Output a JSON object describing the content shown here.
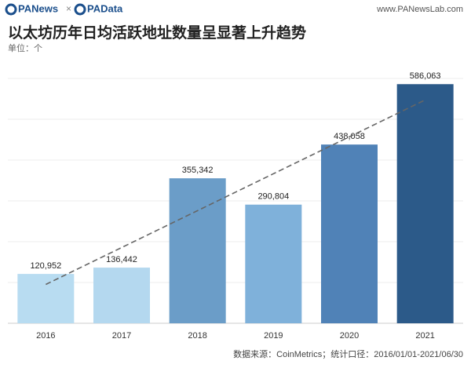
{
  "header": {
    "brand1": "PANews",
    "separator": "×",
    "brand2": "PAData",
    "url": "www.PANewsLab.com"
  },
  "chart_data": {
    "type": "bar",
    "title": "以太坊历年日均活跃地址数量呈显著上升趋势",
    "subtitle": "单位：个",
    "categories": [
      "2016",
      "2017",
      "2018",
      "2019",
      "2020",
      "2021"
    ],
    "values": [
      120952,
      136442,
      355342,
      290804,
      438058,
      586063
    ],
    "value_labels": [
      "120,952",
      "136,442",
      "355,342",
      "290,804",
      "438,058",
      "586,063"
    ],
    "colors": [
      "#b8dcf1",
      "#b4d8ef",
      "#6b9dc8",
      "#7fb1da",
      "#5082b7",
      "#2c5a89"
    ],
    "ylim": [
      0,
      600000
    ],
    "yticks": [
      0,
      100000,
      200000,
      300000,
      400000,
      500000,
      600000
    ],
    "grid": true,
    "trendline": true,
    "source": "数据来源：CoinMetrics；统计口径：2016/01/01-2021/06/30"
  }
}
